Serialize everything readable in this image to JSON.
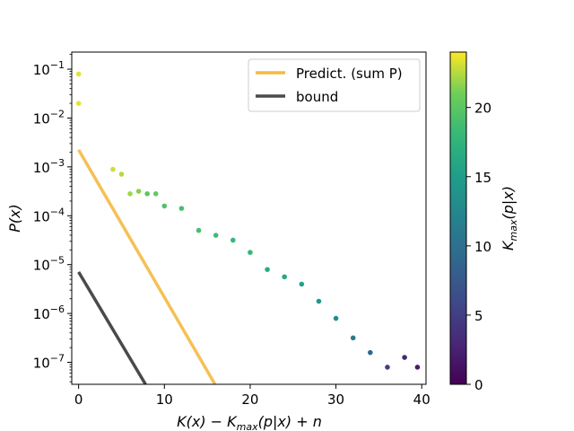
{
  "chart_data": {
    "type": "scatter",
    "title": "",
    "xlabel": "K(x) − K_max(p|x) + n",
    "ylabel": "P(x)",
    "xlim": [
      -0.8,
      40.5
    ],
    "ylim_log10": [
      -7.45,
      -0.65
    ],
    "x_ticks": [
      0,
      10,
      20,
      30,
      40
    ],
    "x_tick_labels": [
      "0",
      "10",
      "20",
      "30",
      "40"
    ],
    "y_ticks_log10": [
      -7,
      -6,
      -5,
      -4,
      -3,
      -2,
      -1
    ],
    "y_tick_labels": [
      {
        "base": "10",
        "exp": "−7"
      },
      {
        "base": "10",
        "exp": "−6"
      },
      {
        "base": "10",
        "exp": "−5"
      },
      {
        "base": "10",
        "exp": "−4"
      },
      {
        "base": "10",
        "exp": "−3"
      },
      {
        "base": "10",
        "exp": "−2"
      },
      {
        "base": "10",
        "exp": "−1"
      }
    ],
    "colorbar": {
      "label": "K_max(p|x)",
      "range": [
        0,
        24
      ],
      "ticks": [
        0,
        5,
        10,
        15,
        20
      ],
      "tick_labels": [
        "0",
        "5",
        "10",
        "15",
        "20"
      ],
      "colormap": "viridis"
    },
    "legend": {
      "position": "top-right",
      "entries": [
        {
          "label": "Predict. (sum P)",
          "color": "#f5b942"
        },
        {
          "label": "bound",
          "color": "#4a4a4a"
        }
      ]
    },
    "lines": [
      {
        "name": "Predict. (sum P)",
        "x": [
          0,
          15.9
        ],
        "y_log10": [
          -2.65,
          -7.45
        ]
      },
      {
        "name": "bound",
        "x": [
          0,
          7.8
        ],
        "y_log10": [
          -5.15,
          -7.45
        ]
      }
    ],
    "scatter_points": [
      {
        "x": 0,
        "y_log10": -1.1,
        "c": 23.5
      },
      {
        "x": 0,
        "y_log10": -1.7,
        "c": 23.5
      },
      {
        "x": 4,
        "y_log10": -3.05,
        "c": 23
      },
      {
        "x": 5,
        "y_log10": -3.15,
        "c": 22.5
      },
      {
        "x": 6,
        "y_log10": -3.55,
        "c": 22
      },
      {
        "x": 7,
        "y_log10": -3.5,
        "c": 21.5
      },
      {
        "x": 8,
        "y_log10": -3.55,
        "c": 20
      },
      {
        "x": 9,
        "y_log10": -3.55,
        "c": 20.5
      },
      {
        "x": 10,
        "y_log10": -3.8,
        "c": 19.5
      },
      {
        "x": 12,
        "y_log10": -3.85,
        "c": 19
      },
      {
        "x": 14,
        "y_log10": -4.3,
        "c": 19
      },
      {
        "x": 16,
        "y_log10": -4.4,
        "c": 18.5
      },
      {
        "x": 18,
        "y_log10": -4.5,
        "c": 18
      },
      {
        "x": 20,
        "y_log10": -4.75,
        "c": 18
      },
      {
        "x": 22,
        "y_log10": -5.1,
        "c": 16.5
      },
      {
        "x": 24,
        "y_log10": -5.25,
        "c": 16
      },
      {
        "x": 26,
        "y_log10": -5.4,
        "c": 15.5
      },
      {
        "x": 28,
        "y_log10": -5.75,
        "c": 14.5
      },
      {
        "x": 30,
        "y_log10": -6.1,
        "c": 13
      },
      {
        "x": 32,
        "y_log10": -6.5,
        "c": 11
      },
      {
        "x": 34,
        "y_log10": -6.8,
        "c": 9
      },
      {
        "x": 36,
        "y_log10": -7.1,
        "c": 5
      },
      {
        "x": 38,
        "y_log10": -6.9,
        "c": 3
      },
      {
        "x": 39.5,
        "y_log10": -7.1,
        "c": 2
      }
    ]
  }
}
